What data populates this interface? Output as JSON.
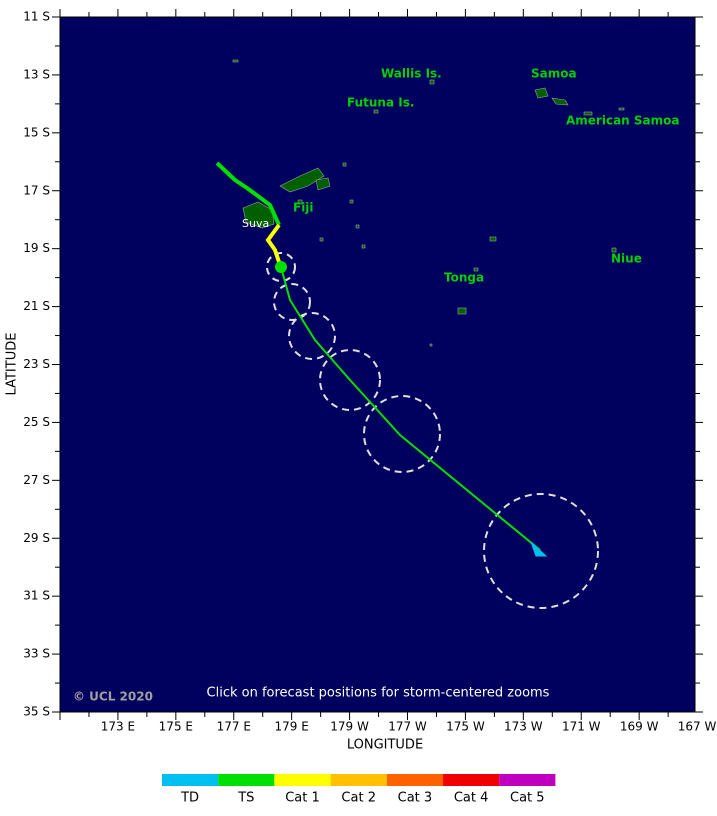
{
  "map": {
    "latitude_labels": [
      "11 S",
      "13 S",
      "15 S",
      "17 S",
      "19 S",
      "21 S",
      "23 S",
      "25 S",
      "27 S",
      "29 S",
      "31 S",
      "33 S",
      "35 S"
    ],
    "longitude_labels": [
      "173 E",
      "175 E",
      "177 E",
      "179 E",
      "179 W",
      "177 W",
      "175 W",
      "173 W",
      "171 W",
      "169 W",
      "167 W"
    ],
    "x_axis_label": "LONGITUDE",
    "y_axis_label": "LATITUDE",
    "places": [
      "Wallis Is.",
      "Futuna Is.",
      "Samoa",
      "American Samoa",
      "Fiji",
      "Suva",
      "Tonga",
      "Niue"
    ],
    "copyright": "© UCL 2020",
    "instruction": "Click on forecast positions for storm-centered zooms",
    "legend": [
      {
        "name": "TD",
        "color": "#00c0f0"
      },
      {
        "name": "TS",
        "color": "#00e000"
      },
      {
        "name": "Cat 1",
        "color": "#ffff00"
      },
      {
        "name": "Cat 2",
        "color": "#ffc000"
      },
      {
        "name": "Cat 3",
        "color": "#ff6000"
      },
      {
        "name": "Cat 4",
        "color": "#f00000"
      },
      {
        "name": "Cat 5",
        "color": "#c000c0"
      }
    ]
  }
}
